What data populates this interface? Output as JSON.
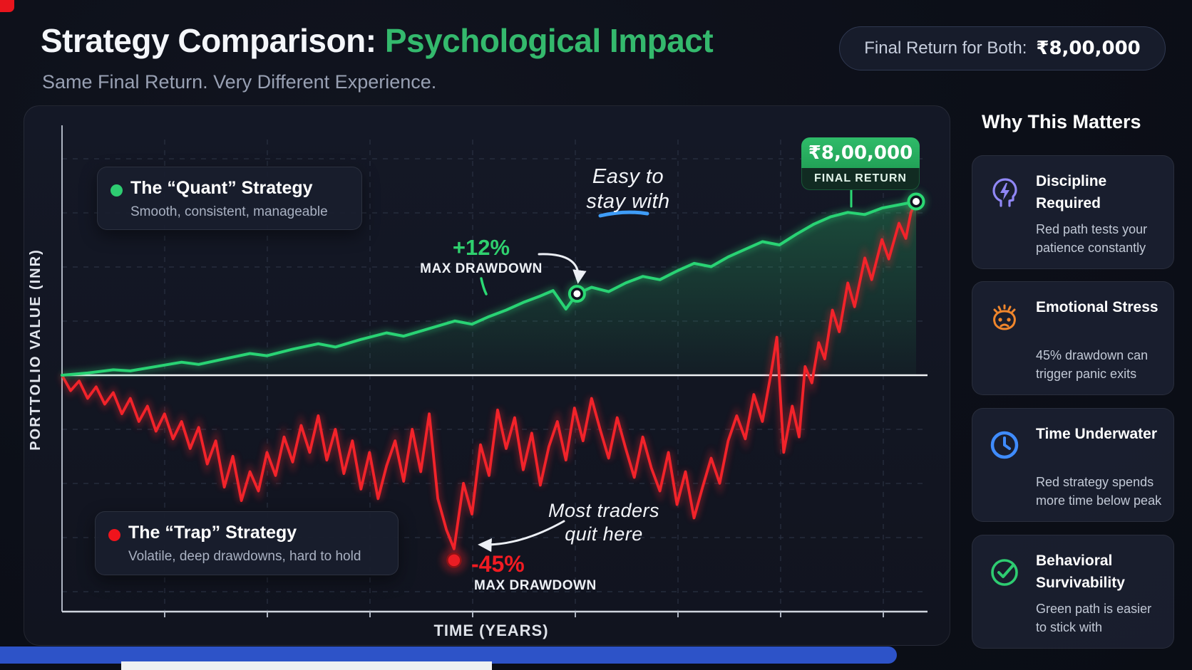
{
  "header": {
    "title_white": "Strategy Comparison:",
    "title_green": "Psychological Impact",
    "subtitle": "Same Final Return. Very Different Experience.",
    "pill_label": "Final Return for Both:",
    "pill_value": "₹8,00,000"
  },
  "chart_data": {
    "type": "line",
    "xlabel": "TIME (YEARS)",
    "ylabel": "PORTTOLIO VALUE (INR)",
    "x_range": [
      0,
      100
    ],
    "baseline_value": 100,
    "final_value": 260,
    "grid": "dashed",
    "legend_position": "in-plot",
    "note": "schematic infographic; drawdowns below baseline drawn exaggerated",
    "series": [
      {
        "name": "The “Quant” Strategy",
        "color": "#29d374",
        "max_drawdown_pct": -12,
        "points": [
          [
            0,
            100
          ],
          [
            3,
            102
          ],
          [
            6,
            105
          ],
          [
            8,
            104
          ],
          [
            11,
            108
          ],
          [
            14,
            112
          ],
          [
            16,
            110
          ],
          [
            19,
            115
          ],
          [
            22,
            120
          ],
          [
            24,
            118
          ],
          [
            27,
            124
          ],
          [
            30,
            129
          ],
          [
            32,
            126
          ],
          [
            35,
            133
          ],
          [
            38,
            139
          ],
          [
            40,
            136
          ],
          [
            43,
            143
          ],
          [
            46,
            150
          ],
          [
            48,
            147
          ],
          [
            50,
            154
          ],
          [
            52,
            160
          ],
          [
            54,
            167
          ],
          [
            56,
            173
          ],
          [
            57.5,
            178
          ],
          [
            59,
            161
          ],
          [
            60.3,
            175
          ],
          [
            62,
            181
          ],
          [
            64,
            177
          ],
          [
            66,
            185
          ],
          [
            68,
            191
          ],
          [
            70,
            188
          ],
          [
            72,
            196
          ],
          [
            74,
            203
          ],
          [
            76,
            200
          ],
          [
            78,
            209
          ],
          [
            80,
            216
          ],
          [
            82,
            223
          ],
          [
            84,
            220
          ],
          [
            86,
            230
          ],
          [
            88,
            239
          ],
          [
            90,
            246
          ],
          [
            92,
            250
          ],
          [
            94,
            248
          ],
          [
            96,
            254
          ],
          [
            98,
            257
          ],
          [
            100,
            260
          ]
        ]
      },
      {
        "name": "The “Trap” Strategy",
        "color": "#f2232a",
        "max_drawdown_pct": -45,
        "points": [
          [
            0,
            100
          ],
          [
            1,
            96
          ],
          [
            2,
            98.5
          ],
          [
            3,
            94
          ],
          [
            4,
            97
          ],
          [
            5,
            92.5
          ],
          [
            6,
            95.5
          ],
          [
            7,
            90
          ],
          [
            8,
            94
          ],
          [
            9,
            88
          ],
          [
            10,
            92
          ],
          [
            11,
            85.5
          ],
          [
            12,
            90
          ],
          [
            13,
            83.5
          ],
          [
            14,
            88
          ],
          [
            15,
            81
          ],
          [
            16,
            86.5
          ],
          [
            17,
            77
          ],
          [
            18,
            83
          ],
          [
            19,
            71
          ],
          [
            20,
            79
          ],
          [
            21,
            67.5
          ],
          [
            22,
            75
          ],
          [
            23,
            70
          ],
          [
            24,
            80
          ],
          [
            25,
            74
          ],
          [
            26,
            84
          ],
          [
            27,
            77.5
          ],
          [
            28,
            87
          ],
          [
            29,
            80
          ],
          [
            30,
            89.5
          ],
          [
            31,
            78
          ],
          [
            32,
            86
          ],
          [
            33,
            74.5
          ],
          [
            34,
            83
          ],
          [
            35,
            70.5
          ],
          [
            36,
            80
          ],
          [
            37,
            68
          ],
          [
            38,
            76.5
          ],
          [
            39,
            83
          ],
          [
            40,
            72.5
          ],
          [
            41,
            86
          ],
          [
            42,
            75
          ],
          [
            43,
            90
          ],
          [
            44,
            68
          ],
          [
            45,
            60
          ],
          [
            45.9,
            55
          ],
          [
            47,
            72
          ],
          [
            48,
            64
          ],
          [
            49,
            82
          ],
          [
            50,
            74
          ],
          [
            51,
            91
          ],
          [
            52,
            81
          ],
          [
            53,
            89
          ],
          [
            54,
            75.5
          ],
          [
            55,
            85
          ],
          [
            56,
            71.5
          ],
          [
            57,
            81.5
          ],
          [
            58,
            88
          ],
          [
            59,
            78
          ],
          [
            60,
            91.5
          ],
          [
            61,
            83
          ],
          [
            62,
            94
          ],
          [
            63,
            86
          ],
          [
            64,
            78.5
          ],
          [
            65,
            89
          ],
          [
            66,
            81
          ],
          [
            67,
            73.5
          ],
          [
            68,
            84
          ],
          [
            69,
            76
          ],
          [
            70,
            70
          ],
          [
            71,
            80
          ],
          [
            72,
            66.5
          ],
          [
            73,
            75
          ],
          [
            74,
            63
          ],
          [
            75,
            71
          ],
          [
            76,
            78.5
          ],
          [
            77,
            72
          ],
          [
            78,
            83
          ],
          [
            79,
            89.5
          ],
          [
            80,
            83.5
          ],
          [
            81,
            95
          ],
          [
            82,
            88
          ],
          [
            83,
            101
          ],
          [
            83.7,
            135
          ],
          [
            84.5,
            80
          ],
          [
            85.5,
            92
          ],
          [
            86.3,
            84
          ],
          [
            87,
            108
          ],
          [
            87.8,
            98
          ],
          [
            88.6,
            130
          ],
          [
            89.3,
            115
          ],
          [
            90.2,
            160
          ],
          [
            91,
            140
          ],
          [
            92,
            185
          ],
          [
            92.8,
            163
          ],
          [
            94,
            208
          ],
          [
            94.8,
            188
          ],
          [
            96,
            225
          ],
          [
            96.8,
            207
          ],
          [
            98,
            240
          ],
          [
            98.8,
            226
          ],
          [
            99.4,
            250
          ],
          [
            100,
            260
          ]
        ]
      }
    ],
    "markers": [
      {
        "series": 0,
        "x": 60.3,
        "v": 175,
        "kind": "ring-green",
        "dy": 0
      },
      {
        "series": 0,
        "x": 100,
        "v": 260,
        "kind": "ring-green",
        "dy": 0
      },
      {
        "series": 1,
        "x": 45.9,
        "v": 55,
        "kind": "dot-red",
        "dy": 16
      }
    ]
  },
  "legend_quant": {
    "title": "The “Quant” Strategy",
    "subtitle": "Smooth, consistent, manageable",
    "dot_color": "#2ecc71"
  },
  "legend_trap": {
    "title": "The “Trap” Strategy",
    "subtitle": "Volatile, deep drawdowns, hard to hold",
    "dot_color": "#f0141c"
  },
  "annotations": {
    "quant_dd_value": "+12%",
    "quant_dd_label": "MAX DRAWDOWN",
    "trap_dd_value": "-45%",
    "trap_dd_label": "MAX DRAWDOWN",
    "easy_line1": "Easy to",
    "easy_line2": "stay with",
    "quit_line1": "Most traders",
    "quit_line2": "quit here",
    "final_value": "₹8,00,000",
    "final_label": "FINAL RETURN"
  },
  "axes": {
    "x_label": "TIME (YEARS)",
    "y_label": "PORTTOLIO VALUE (INR)"
  },
  "sidebar": {
    "heading": "Why This Matters",
    "cards": [
      {
        "icon": "head-lightning-icon",
        "accent": "#9087f5",
        "title": "Discipline Required",
        "desc": "Red path tests your patience constantly"
      },
      {
        "icon": "stressed-face-icon",
        "accent": "#f0862c",
        "title": "Emotional Stress",
        "desc": "45% drawdown can trigger panic exits"
      },
      {
        "icon": "clock-icon",
        "accent": "#3f8cfd",
        "title": "Time Underwater",
        "desc": "Red strategy spends more time below peak"
      },
      {
        "icon": "check-circle-icon",
        "accent": "#2ecc71",
        "title": "Behavioral Survivability",
        "desc": "Green path is easier to stick with"
      }
    ]
  },
  "colors": {
    "accent_green": "#2ecc71",
    "accent_red": "#f2232a",
    "annotation_blue": "#3f9df8",
    "title_green": "#34b96d"
  }
}
